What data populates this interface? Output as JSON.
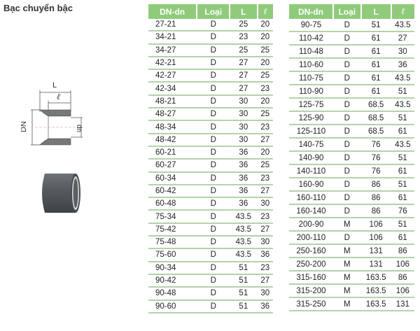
{
  "title": "Bạc chuyển bậc",
  "diagram": {
    "label_L": "L",
    "label_l": "ℓ",
    "label_DN": "DN",
    "label_dn": "dn"
  },
  "headers": [
    "DN-dn",
    "Loại",
    "L",
    "ℓ"
  ],
  "left_rows": [
    [
      "27-21",
      "D",
      "25",
      "20"
    ],
    [
      "34-21",
      "D",
      "23",
      "20"
    ],
    [
      "34-27",
      "D",
      "25",
      "25"
    ],
    [
      "42-21",
      "D",
      "27",
      "20"
    ],
    [
      "42-27",
      "D",
      "27",
      "25"
    ],
    [
      "42-34",
      "D",
      "27",
      "23"
    ],
    [
      "48-21",
      "D",
      "30",
      "20"
    ],
    [
      "48-27",
      "D",
      "30",
      "25"
    ],
    [
      "48-34",
      "D",
      "30",
      "23"
    ],
    [
      "48-42",
      "D",
      "30",
      "27"
    ],
    [
      "60-21",
      "D",
      "36",
      "20"
    ],
    [
      "60-27",
      "D",
      "36",
      "25"
    ],
    [
      "60-34",
      "D",
      "36",
      "23"
    ],
    [
      "60-42",
      "D",
      "36",
      "27"
    ],
    [
      "60-48",
      "D",
      "36",
      "30"
    ],
    [
      "75-34",
      "D",
      "43.5",
      "23"
    ],
    [
      "75-42",
      "D",
      "43.5",
      "27"
    ],
    [
      "75-48",
      "D",
      "43.5",
      "30"
    ],
    [
      "75-60",
      "D",
      "43.5",
      "36"
    ],
    [
      "90-34",
      "D",
      "51",
      "23"
    ],
    [
      "90-42",
      "D",
      "51",
      "27"
    ],
    [
      "90-48",
      "D",
      "51",
      "30"
    ],
    [
      "90-60",
      "D",
      "51",
      "36"
    ]
  ],
  "right_rows": [
    [
      "90-75",
      "D",
      "51",
      "43.5"
    ],
    [
      "110-42",
      "D",
      "61",
      "27"
    ],
    [
      "110-48",
      "D",
      "61",
      "30"
    ],
    [
      "110-60",
      "D",
      "61",
      "36"
    ],
    [
      "110-75",
      "D",
      "61",
      "43.5"
    ],
    [
      "110-90",
      "D",
      "61",
      "51"
    ],
    [
      "125-75",
      "D",
      "68.5",
      "43.5"
    ],
    [
      "125-90",
      "D",
      "68.5",
      "51"
    ],
    [
      "125-110",
      "D",
      "68.5",
      "61"
    ],
    [
      "140-75",
      "D",
      "76",
      "43.5"
    ],
    [
      "140-90",
      "D",
      "76",
      "51"
    ],
    [
      "140-110",
      "D",
      "76",
      "61"
    ],
    [
      "160-90",
      "D",
      "86",
      "51"
    ],
    [
      "160-110",
      "D",
      "86",
      "61"
    ],
    [
      "160-140",
      "D",
      "86",
      "76"
    ],
    [
      "200-90",
      "M",
      "106",
      "51"
    ],
    [
      "200-110",
      "D",
      "106",
      "61"
    ],
    [
      "250-160",
      "M",
      "131",
      "86"
    ],
    [
      "250-200",
      "M",
      "131",
      "106"
    ],
    [
      "315-160",
      "M",
      "163.5",
      "86"
    ],
    [
      "315-200",
      "M",
      "163.5",
      "106"
    ],
    [
      "315-250",
      "M",
      "163.5",
      "131"
    ]
  ]
}
